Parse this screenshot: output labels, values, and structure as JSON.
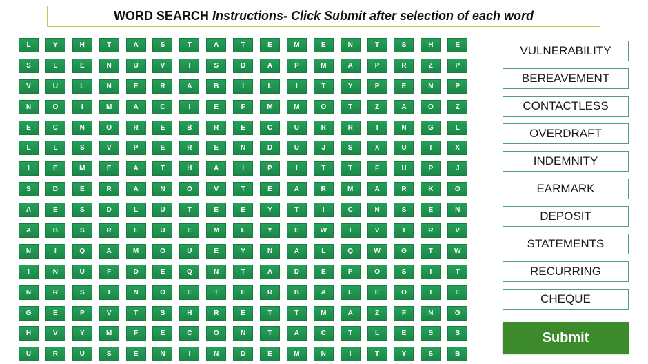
{
  "header": {
    "title": "WORD SEARCH",
    "instructions": "Instructions- Click Submit after selection of each word"
  },
  "grid": {
    "rows": [
      [
        "L",
        "Y",
        "H",
        "T",
        "A",
        "S",
        "T",
        "A",
        "T",
        "E",
        "M",
        "E",
        "N",
        "T",
        "S",
        "H",
        "E"
      ],
      [
        "S",
        "L",
        "E",
        "N",
        "U",
        "V",
        "I",
        "S",
        "D",
        "A",
        "P",
        "M",
        "A",
        "P",
        "R",
        "Z",
        "P"
      ],
      [
        "V",
        "U",
        "L",
        "N",
        "E",
        "R",
        "A",
        "B",
        "I",
        "L",
        "I",
        "T",
        "Y",
        "P",
        "E",
        "N",
        "P"
      ],
      [
        "N",
        "O",
        "I",
        "M",
        "A",
        "C",
        "I",
        "E",
        "F",
        "M",
        "M",
        "O",
        "T",
        "Z",
        "A",
        "O",
        "Z"
      ],
      [
        "E",
        "C",
        "N",
        "O",
        "R",
        "E",
        "B",
        "R",
        "E",
        "C",
        "U",
        "R",
        "R",
        "I",
        "N",
        "G",
        "L"
      ],
      [
        "L",
        "L",
        "S",
        "V",
        "P",
        "E",
        "R",
        "E",
        "N",
        "D",
        "U",
        "J",
        "S",
        "X",
        "U",
        "I",
        "X"
      ],
      [
        "I",
        "E",
        "M",
        "E",
        "A",
        "T",
        "H",
        "A",
        "I",
        "P",
        "I",
        "T",
        "T",
        "F",
        "U",
        "P",
        "J"
      ],
      [
        "S",
        "D",
        "E",
        "R",
        "A",
        "N",
        "O",
        "V",
        "T",
        "E",
        "A",
        "R",
        "M",
        "A",
        "R",
        "K",
        "O"
      ],
      [
        "A",
        "E",
        "S",
        "D",
        "L",
        "U",
        "T",
        "E",
        "E",
        "Y",
        "T",
        "I",
        "C",
        "N",
        "S",
        "E",
        "N"
      ],
      [
        "A",
        "B",
        "S",
        "R",
        "L",
        "U",
        "E",
        "M",
        "L",
        "Y",
        "E",
        "W",
        "I",
        "V",
        "T",
        "R",
        "V"
      ],
      [
        "N",
        "I",
        "Q",
        "A",
        "M",
        "O",
        "U",
        "E",
        "Y",
        "N",
        "A",
        "L",
        "Q",
        "W",
        "G",
        "T",
        "W"
      ],
      [
        "I",
        "N",
        "U",
        "F",
        "D",
        "E",
        "Q",
        "N",
        "T",
        "A",
        "D",
        "E",
        "P",
        "O",
        "S",
        "I",
        "T"
      ],
      [
        "N",
        "R",
        "S",
        "T",
        "N",
        "O",
        "E",
        "T",
        "E",
        "R",
        "B",
        "A",
        "L",
        "E",
        "O",
        "I",
        "E"
      ],
      [
        "G",
        "E",
        "P",
        "V",
        "T",
        "S",
        "H",
        "R",
        "E",
        "T",
        "T",
        "M",
        "A",
        "Z",
        "F",
        "N",
        "G"
      ],
      [
        "H",
        "V",
        "Y",
        "M",
        "F",
        "E",
        "C",
        "O",
        "N",
        "T",
        "A",
        "C",
        "T",
        "L",
        "E",
        "S",
        "S"
      ],
      [
        "U",
        "R",
        "U",
        "S",
        "E",
        "N",
        "I",
        "N",
        "D",
        "E",
        "M",
        "N",
        "I",
        "T",
        "Y",
        "S",
        "B"
      ]
    ]
  },
  "word_list": [
    "VULNERABILITY",
    "BEREAVEMENT",
    "CONTACTLESS",
    "OVERDRAFT",
    "INDEMNITY",
    "EARMARK",
    "DEPOSIT",
    "STATEMENTS",
    "RECURRING",
    "CHEQUE"
  ],
  "submit_label": "Submit",
  "colors": {
    "cell_green": "#1f9150",
    "submit_green": "#3c8a2c",
    "title_border": "#c6c65a",
    "word_border": "#4d9e7a"
  }
}
